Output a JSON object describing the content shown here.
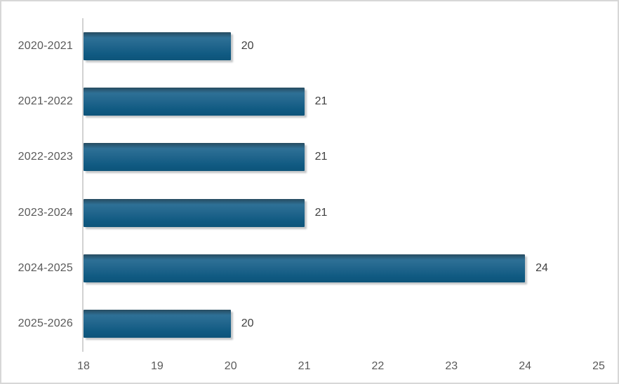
{
  "chart_data": {
    "type": "bar",
    "orientation": "horizontal",
    "title": "",
    "xlabel": "",
    "ylabel": "",
    "categories": [
      "2020-2021",
      "2021-2022",
      "2022-2023",
      "2023-2024",
      "2024-2025",
      "2025-2026"
    ],
    "values": [
      20,
      21,
      21,
      21,
      24,
      20
    ],
    "data_labels": [
      "20",
      "21",
      "21",
      "21",
      "24",
      "20"
    ],
    "xlim": [
      18,
      25
    ],
    "xticks": [
      18,
      19,
      20,
      21,
      22,
      23,
      24,
      25
    ],
    "grid": false,
    "legend": false,
    "colors": {
      "bar_gradient": [
        "#274b60",
        "#2e7096",
        "#20658c",
        "#105a82",
        "#0d547a"
      ],
      "axis_line": "#d2d2d2",
      "frame_border": "#d7d7d7",
      "axis_text": "#595959",
      "value_text": "#404040",
      "background": "#ffffff"
    }
  }
}
